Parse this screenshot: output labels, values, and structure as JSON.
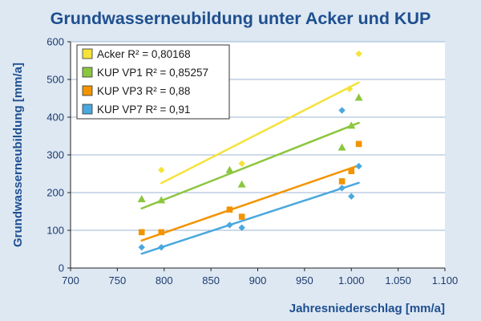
{
  "chart_data": {
    "type": "scatter",
    "title": "Grundwasserneubildung unter Acker und KUP",
    "xlabel": "Jahresniederschlag [mm/a]",
    "ylabel": "Grundwasserneubildung [mm/a]",
    "xlim": [
      700,
      1100
    ],
    "ylim": [
      0,
      600
    ],
    "x_ticks": [
      "700",
      "750",
      "800",
      "850",
      "900",
      "950",
      "1.000",
      "1.050",
      "1.100"
    ],
    "y_ticks": [
      "0",
      "100",
      "200",
      "300",
      "400",
      "500",
      "600"
    ],
    "grid": "horizontal",
    "legend_position": "top-left",
    "series": [
      {
        "name": "Acker R² = 0,80168",
        "color": "#f5e23a",
        "marker": "diamond",
        "points": [
          [
            797,
            260
          ],
          [
            883,
            277
          ],
          [
            998,
            475
          ],
          [
            1008,
            568
          ]
        ],
        "trendline": [
          [
            797,
            225
          ],
          [
            1008,
            492
          ]
        ]
      },
      {
        "name": "KUP VP1 R² = 0,85257",
        "color": "#8cc63f",
        "marker": "triangle",
        "points": [
          [
            776,
            183
          ],
          [
            797,
            180
          ],
          [
            870,
            260
          ],
          [
            883,
            222
          ],
          [
            990,
            320
          ],
          [
            1000,
            378
          ],
          [
            1008,
            452
          ]
        ],
        "trendline": [
          [
            776,
            158
          ],
          [
            1008,
            385
          ]
        ]
      },
      {
        "name": "KUP VP3 R² = 0,88",
        "color": "#f29400",
        "marker": "square",
        "points": [
          [
            776,
            95
          ],
          [
            797,
            95
          ],
          [
            870,
            155
          ],
          [
            883,
            136
          ],
          [
            990,
            230
          ],
          [
            1000,
            257
          ],
          [
            1008,
            329
          ]
        ],
        "trendline": [
          [
            776,
            73
          ],
          [
            1008,
            272
          ]
        ]
      },
      {
        "name": "KUP VP7 R² = 0,91",
        "color": "#4aa8de",
        "marker": "diamond",
        "points": [
          [
            776,
            55
          ],
          [
            797,
            55
          ],
          [
            870,
            114
          ],
          [
            883,
            107
          ],
          [
            990,
            418
          ],
          [
            990,
            212
          ],
          [
            1000,
            190
          ],
          [
            1008,
            270
          ]
        ],
        "trendline": [
          [
            776,
            38
          ],
          [
            1008,
            226
          ]
        ]
      }
    ]
  },
  "colors": {
    "background": "#dde8f3",
    "plot_background": "#ffffff",
    "title": "#1f4f8f",
    "axis_label": "#1f4f8f",
    "grid": "#9db6d6"
  }
}
